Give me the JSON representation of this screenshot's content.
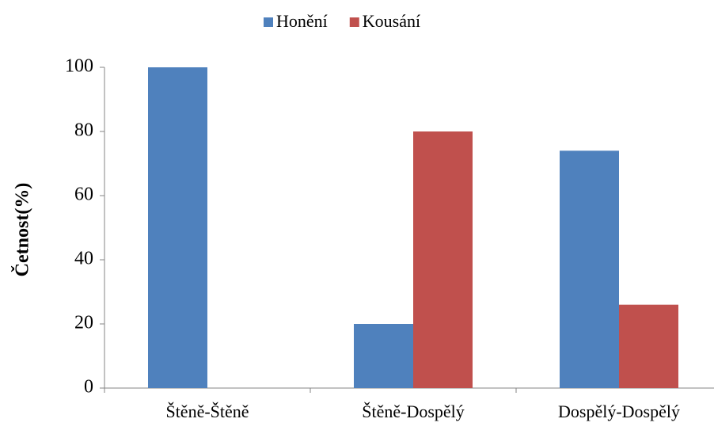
{
  "chart_data": {
    "type": "bar",
    "categories": [
      "Štěně-Štěně",
      "Štěně-Dospělý",
      "Dospělý-Dospělý"
    ],
    "series": [
      {
        "name": "Honění",
        "color": "#4f81bd",
        "values": [
          100,
          20,
          74
        ]
      },
      {
        "name": "Kousání",
        "color": "#c0504d",
        "values": [
          0,
          80,
          26
        ]
      }
    ],
    "y_label": "Četnost(%)",
    "ylim": [
      0,
      100
    ],
    "yticks": [
      0,
      20,
      40,
      60,
      80,
      100
    ],
    "grid": false,
    "legend": "top"
  }
}
